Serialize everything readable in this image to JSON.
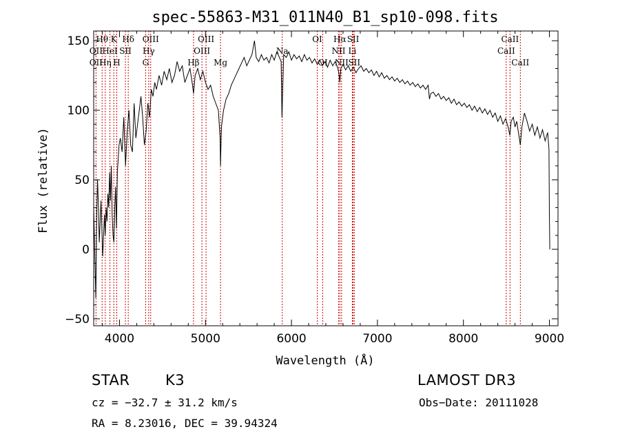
{
  "chart_data": {
    "type": "line",
    "title": "spec-55863-M31_011N40_B1_sp10-098.fits",
    "xlabel": "Wavelength (Å)",
    "ylabel": "Flux (relative)",
    "xlim": [
      3700,
      9100
    ],
    "ylim": [
      -55,
      157
    ],
    "x_ticks": [
      4000,
      5000,
      6000,
      7000,
      8000,
      9000
    ],
    "y_ticks": [
      -50,
      0,
      50,
      100,
      150
    ],
    "series": [
      {
        "name": "flux",
        "points": [
          [
            3700,
            30
          ],
          [
            3715,
            -10
          ],
          [
            3725,
            -35
          ],
          [
            3735,
            25
          ],
          [
            3745,
            50
          ],
          [
            3755,
            30
          ],
          [
            3765,
            5
          ],
          [
            3775,
            20
          ],
          [
            3785,
            35
          ],
          [
            3795,
            15
          ],
          [
            3805,
            -5
          ],
          [
            3815,
            10
          ],
          [
            3825,
            25
          ],
          [
            3835,
            10
          ],
          [
            3845,
            30
          ],
          [
            3855,
            20
          ],
          [
            3865,
            40
          ],
          [
            3875,
            30
          ],
          [
            3885,
            55
          ],
          [
            3895,
            35
          ],
          [
            3905,
            60
          ],
          [
            3915,
            25
          ],
          [
            3925,
            10
          ],
          [
            3935,
            5
          ],
          [
            3945,
            30
          ],
          [
            3955,
            45
          ],
          [
            3965,
            15
          ],
          [
            3975,
            55
          ],
          [
            3985,
            65
          ],
          [
            3995,
            75
          ],
          [
            4010,
            80
          ],
          [
            4030,
            70
          ],
          [
            4050,
            95
          ],
          [
            4070,
            60
          ],
          [
            4090,
            85
          ],
          [
            4110,
            100
          ],
          [
            4130,
            75
          ],
          [
            4150,
            70
          ],
          [
            4170,
            105
          ],
          [
            4190,
            80
          ],
          [
            4210,
            90
          ],
          [
            4230,
            100
          ],
          [
            4250,
            110
          ],
          [
            4270,
            95
          ],
          [
            4290,
            75
          ],
          [
            4310,
            85
          ],
          [
            4330,
            105
          ],
          [
            4350,
            95
          ],
          [
            4370,
            115
          ],
          [
            4390,
            110
          ],
          [
            4410,
            120
          ],
          [
            4430,
            115
          ],
          [
            4460,
            125
          ],
          [
            4490,
            118
          ],
          [
            4520,
            128
          ],
          [
            4550,
            122
          ],
          [
            4580,
            130
          ],
          [
            4610,
            120
          ],
          [
            4640,
            125
          ],
          [
            4670,
            135
          ],
          [
            4700,
            128
          ],
          [
            4730,
            132
          ],
          [
            4760,
            120
          ],
          [
            4790,
            125
          ],
          [
            4820,
            130
          ],
          [
            4850,
            118
          ],
          [
            4861,
            112
          ],
          [
            4880,
            125
          ],
          [
            4910,
            130
          ],
          [
            4940,
            122
          ],
          [
            4970,
            128
          ],
          [
            5000,
            120
          ],
          [
            5030,
            115
          ],
          [
            5060,
            118
          ],
          [
            5090,
            110
          ],
          [
            5120,
            105
          ],
          [
            5150,
            100
          ],
          [
            5170,
            80
          ],
          [
            5175,
            60
          ],
          [
            5185,
            88
          ],
          [
            5210,
            100
          ],
          [
            5240,
            108
          ],
          [
            5270,
            112
          ],
          [
            5300,
            118
          ],
          [
            5330,
            122
          ],
          [
            5360,
            126
          ],
          [
            5390,
            130
          ],
          [
            5420,
            134
          ],
          [
            5450,
            138
          ],
          [
            5480,
            132
          ],
          [
            5510,
            136
          ],
          [
            5540,
            140
          ],
          [
            5570,
            150
          ],
          [
            5590,
            138
          ],
          [
            5620,
            135
          ],
          [
            5650,
            140
          ],
          [
            5680,
            136
          ],
          [
            5710,
            138
          ],
          [
            5740,
            134
          ],
          [
            5770,
            140
          ],
          [
            5800,
            136
          ],
          [
            5830,
            142
          ],
          [
            5860,
            138
          ],
          [
            5880,
            135
          ],
          [
            5890,
            95
          ],
          [
            5896,
            110
          ],
          [
            5910,
            140
          ],
          [
            5940,
            138
          ],
          [
            5970,
            142
          ],
          [
            6000,
            136
          ],
          [
            6030,
            140
          ],
          [
            6060,
            137
          ],
          [
            6090,
            139
          ],
          [
            6120,
            135
          ],
          [
            6150,
            140
          ],
          [
            6180,
            136
          ],
          [
            6210,
            138
          ],
          [
            6240,
            134
          ],
          [
            6270,
            137
          ],
          [
            6300,
            133
          ],
          [
            6330,
            136
          ],
          [
            6360,
            132
          ],
          [
            6390,
            135
          ],
          [
            6420,
            131
          ],
          [
            6450,
            136
          ],
          [
            6480,
            132
          ],
          [
            6510,
            135
          ],
          [
            6540,
            130
          ],
          [
            6555,
            125
          ],
          [
            6563,
            120
          ],
          [
            6575,
            130
          ],
          [
            6600,
            133
          ],
          [
            6630,
            129
          ],
          [
            6660,
            132
          ],
          [
            6690,
            128
          ],
          [
            6720,
            131
          ],
          [
            6750,
            127
          ],
          [
            6780,
            130
          ],
          [
            6810,
            132
          ],
          [
            6840,
            128
          ],
          [
            6870,
            130
          ],
          [
            6900,
            127
          ],
          [
            6930,
            129
          ],
          [
            6960,
            125
          ],
          [
            6990,
            128
          ],
          [
            7020,
            124
          ],
          [
            7050,
            127
          ],
          [
            7080,
            123
          ],
          [
            7110,
            125
          ],
          [
            7140,
            122
          ],
          [
            7170,
            124
          ],
          [
            7200,
            121
          ],
          [
            7230,
            123
          ],
          [
            7260,
            120
          ],
          [
            7290,
            122
          ],
          [
            7320,
            119
          ],
          [
            7350,
            121
          ],
          [
            7380,
            118
          ],
          [
            7410,
            120
          ],
          [
            7440,
            117
          ],
          [
            7470,
            119
          ],
          [
            7500,
            116
          ],
          [
            7530,
            118
          ],
          [
            7560,
            115
          ],
          [
            7590,
            118
          ],
          [
            7605,
            108
          ],
          [
            7620,
            112
          ],
          [
            7650,
            113
          ],
          [
            7680,
            110
          ],
          [
            7710,
            112
          ],
          [
            7740,
            108
          ],
          [
            7770,
            110
          ],
          [
            7800,
            107
          ],
          [
            7830,
            109
          ],
          [
            7860,
            105
          ],
          [
            7890,
            108
          ],
          [
            7920,
            104
          ],
          [
            7950,
            106
          ],
          [
            7980,
            103
          ],
          [
            8010,
            105
          ],
          [
            8040,
            102
          ],
          [
            8070,
            104
          ],
          [
            8100,
            100
          ],
          [
            8130,
            103
          ],
          [
            8160,
            99
          ],
          [
            8190,
            102
          ],
          [
            8220,
            98
          ],
          [
            8250,
            101
          ],
          [
            8280,
            97
          ],
          [
            8310,
            100
          ],
          [
            8340,
            95
          ],
          [
            8370,
            98
          ],
          [
            8400,
            92
          ],
          [
            8430,
            96
          ],
          [
            8460,
            90
          ],
          [
            8490,
            94
          ],
          [
            8520,
            88
          ],
          [
            8540,
            82
          ],
          [
            8555,
            92
          ],
          [
            8580,
            95
          ],
          [
            8600,
            88
          ],
          [
            8620,
            92
          ],
          [
            8650,
            80
          ],
          [
            8662,
            75
          ],
          [
            8680,
            88
          ],
          [
            8710,
            98
          ],
          [
            8740,
            92
          ],
          [
            8770,
            85
          ],
          [
            8800,
            90
          ],
          [
            8830,
            82
          ],
          [
            8860,
            88
          ],
          [
            8890,
            80
          ],
          [
            8920,
            86
          ],
          [
            8950,
            78
          ],
          [
            8980,
            84
          ],
          [
            8995,
            72
          ],
          [
            9000,
            25
          ],
          [
            9005,
            0
          ]
        ]
      }
    ],
    "spectral_lines": [
      {
        "label": "Hθ",
        "x": 3798,
        "row": 0
      },
      {
        "label": "OII",
        "x": 3727,
        "row": 1
      },
      {
        "label": "OII",
        "x": 3727,
        "row": 2
      },
      {
        "label": "K",
        "x": 3934,
        "row": 0
      },
      {
        "label": "HeI",
        "x": 3889,
        "row": 1
      },
      {
        "label": "Hη",
        "x": 3835,
        "row": 2
      },
      {
        "label": "H",
        "x": 3968,
        "row": 2
      },
      {
        "label": "Hδ",
        "x": 4102,
        "row": 0
      },
      {
        "label": "SII",
        "x": 4069,
        "row": 1
      },
      {
        "label": "OIII",
        "x": 4363,
        "row": 0
      },
      {
        "label": "Hγ",
        "x": 4340,
        "row": 1
      },
      {
        "label": "G",
        "x": 4304,
        "row": 2
      },
      {
        "label": "Hβ",
        "x": 4861,
        "row": 2
      },
      {
        "label": "OIII",
        "x": 5007,
        "row": 0
      },
      {
        "label": "OIII",
        "x": 4959,
        "row": 1
      },
      {
        "label": "Mg",
        "x": 5175,
        "row": 2
      },
      {
        "label": "Na",
        "x": 5893,
        "row": 1
      },
      {
        "label": "OI",
        "x": 6300,
        "row": 0
      },
      {
        "label": "OI",
        "x": 6364,
        "row": 2
      },
      {
        "label": "Hα",
        "x": 6563,
        "row": 0
      },
      {
        "label": "SII",
        "x": 6717,
        "row": 0
      },
      {
        "label": "NII",
        "x": 6548,
        "row": 1
      },
      {
        "label": "Li",
        "x": 6708,
        "row": 1
      },
      {
        "label": "NII",
        "x": 6583,
        "row": 2
      },
      {
        "label": "SII",
        "x": 6731,
        "row": 2
      },
      {
        "label": "CaII",
        "x": 8542,
        "row": 0
      },
      {
        "label": "CaII",
        "x": 8498,
        "row": 1
      },
      {
        "label": "CaII",
        "x": 8662,
        "row": 2
      }
    ],
    "line_color": "#cc0000",
    "spectrum_color": "#000000"
  },
  "info": {
    "class_label": "STAR",
    "subclass_label": "K3",
    "survey_label": "LAMOST DR3",
    "redshift_text": "cz = −32.7 ± 31.2 km/s",
    "obs_date_text": "Obs−Date: 20111028",
    "coords_text": "RA =   8.23016, DEC =  39.94324"
  }
}
